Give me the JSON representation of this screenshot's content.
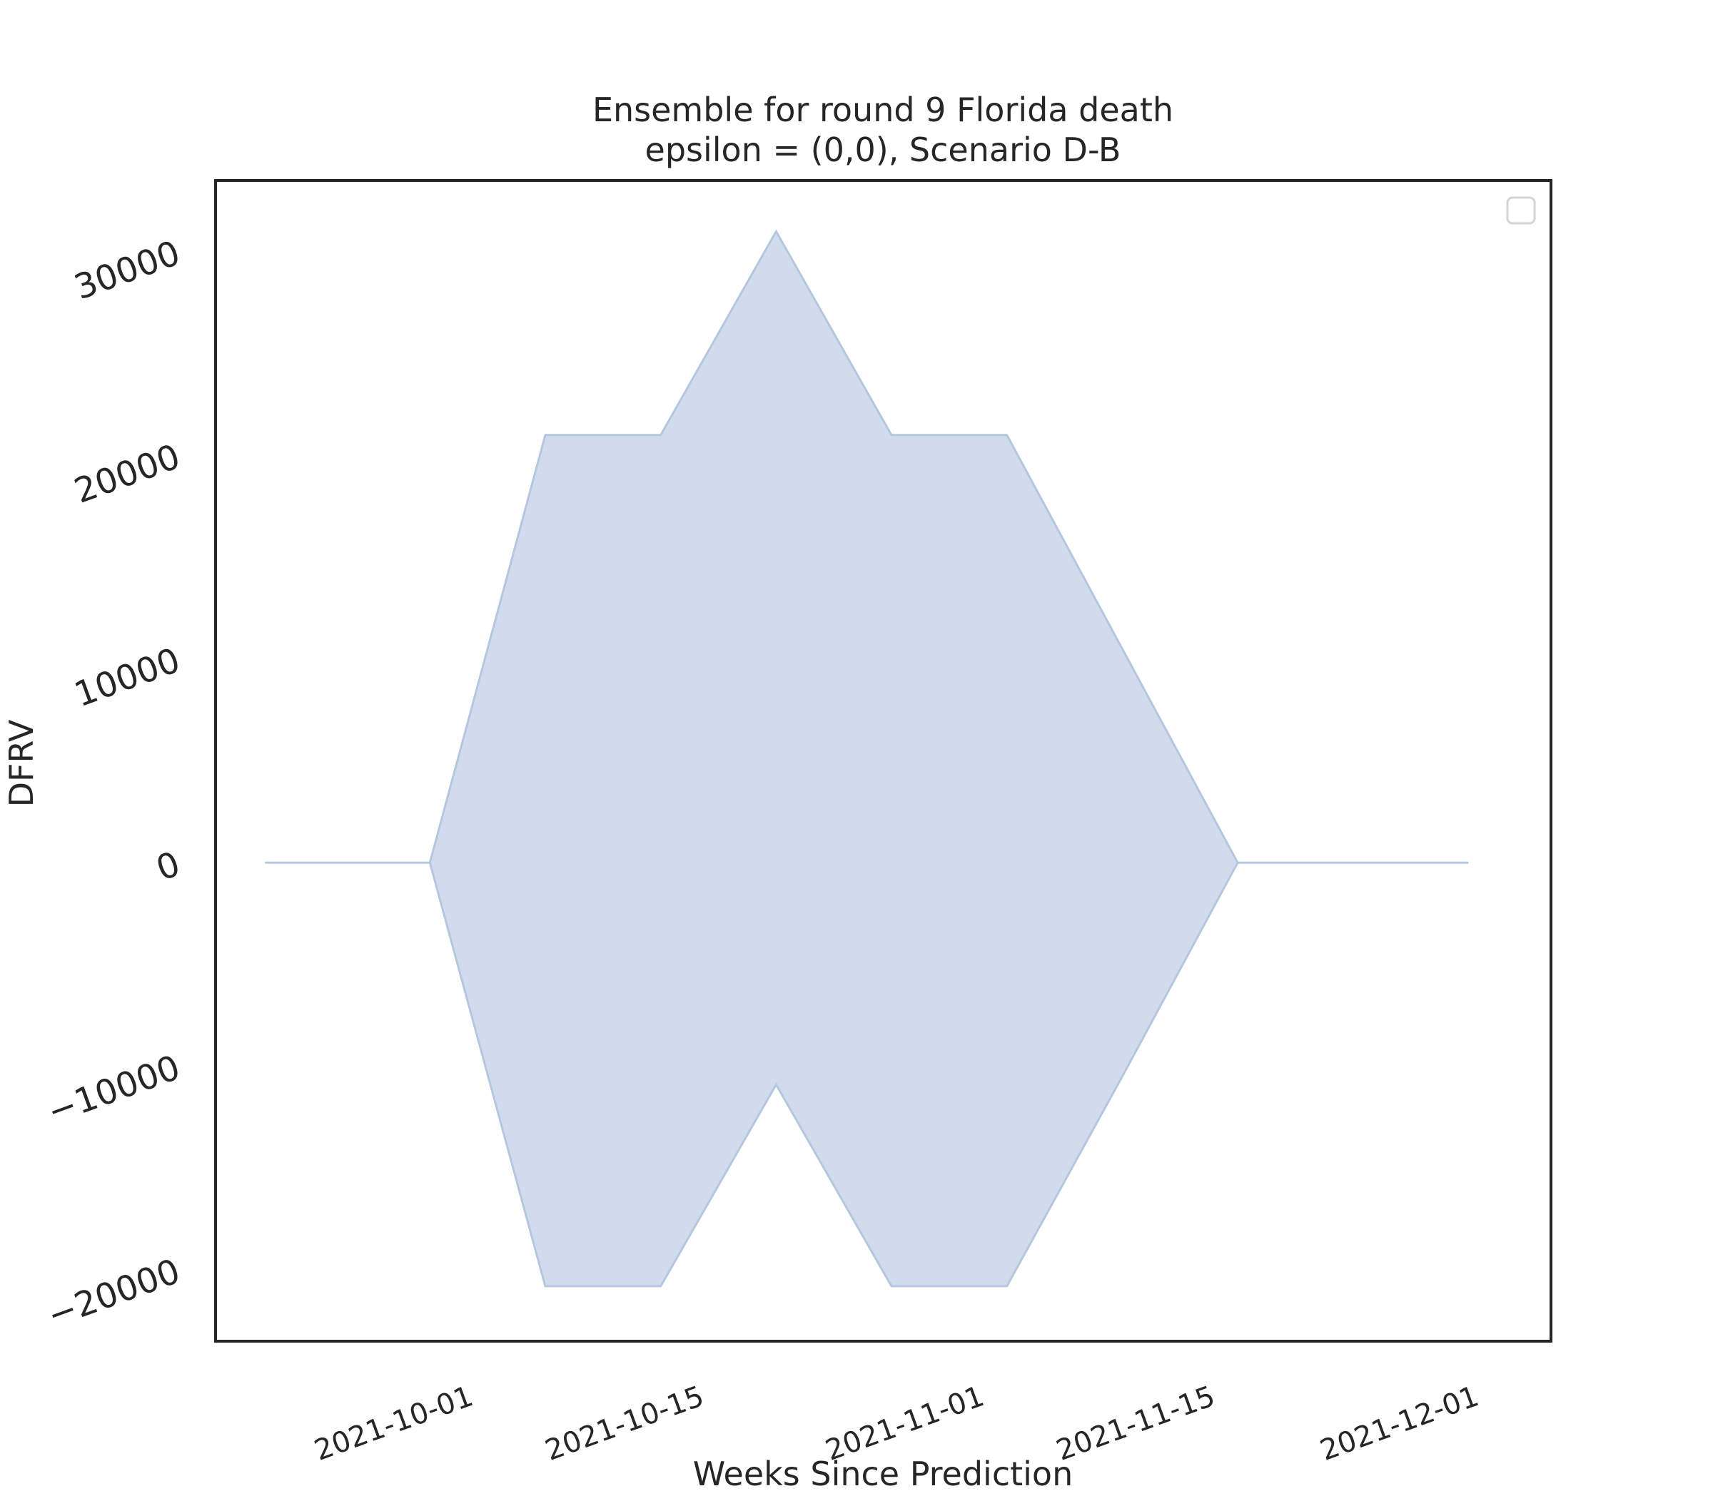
{
  "chart_data": {
    "type": "area",
    "title": "Ensemble for round 9 Florida death",
    "subtitle": "epsilon = (0,0), Scenario D-B",
    "xlabel": "Weeks Since Prediction",
    "ylabel": "DFRV",
    "x_ticks": [
      "2021-10-01",
      "2021-10-15",
      "2021-11-01",
      "2021-11-15",
      "2021-12-01"
    ],
    "y_ticks": [
      -20000,
      -10000,
      0,
      10000,
      20000,
      30000
    ],
    "y_tick_labels": [
      "−20000",
      "−10000",
      "0",
      "10000",
      "20000",
      "30000"
    ],
    "xlim": [
      "2021-09-17",
      "2021-12-07"
    ],
    "ylim": [
      -23500,
      33500
    ],
    "grid": false,
    "legend": {
      "placement": "upper right",
      "entries": []
    },
    "colors": {
      "fill": "#d1dbeb",
      "edge": "#b5c6df",
      "axes": "#262626"
    },
    "series": [
      {
        "x": [
          "2021-09-20",
          "2021-09-30",
          "2021-10-07",
          "2021-10-14",
          "2021-10-21",
          "2021-10-28",
          "2021-11-04",
          "2021-11-11",
          "2021-11-18",
          "2021-11-25",
          "2021-12-02"
        ],
        "upper": [
          0,
          0,
          21000,
          21000,
          31000,
          21000,
          21000,
          10500,
          0,
          0,
          0
        ],
        "lower": [
          0,
          0,
          -20800,
          -20800,
          -10900,
          -20800,
          -20800,
          -10500,
          0,
          0,
          0
        ]
      }
    ]
  }
}
